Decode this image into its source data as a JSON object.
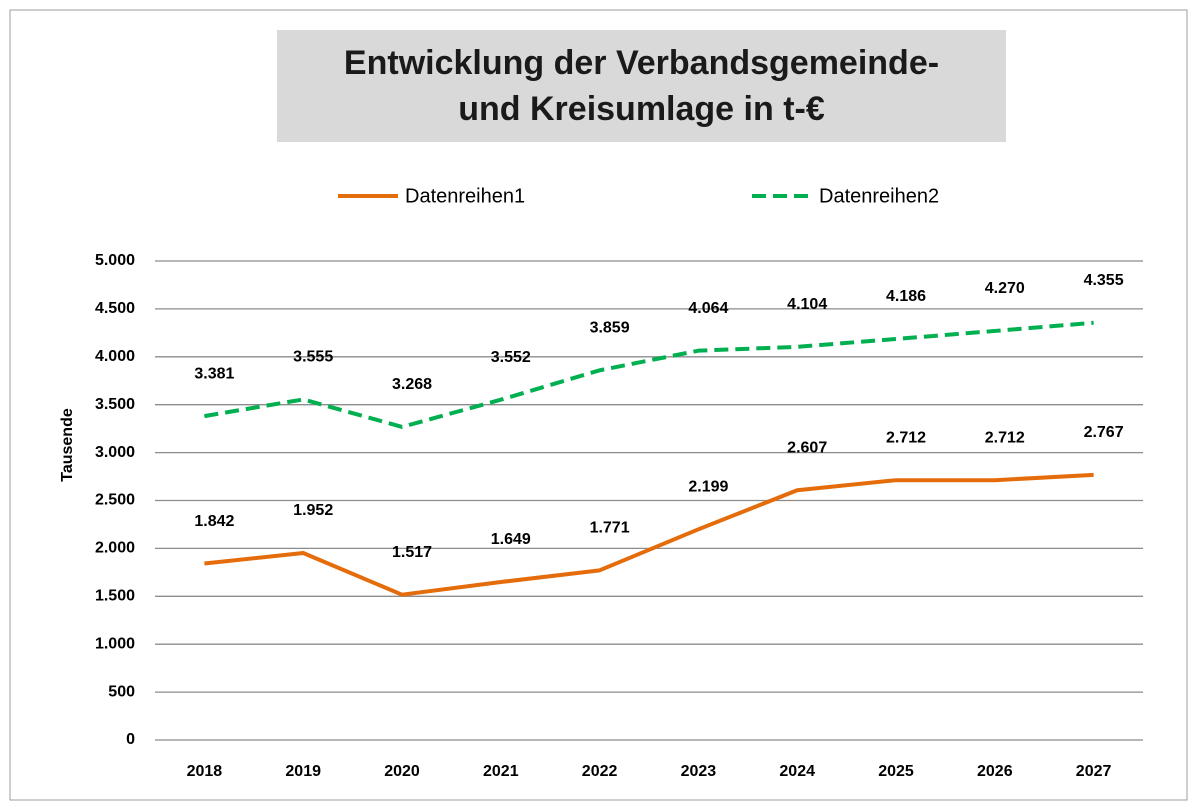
{
  "chart_data": {
    "type": "line",
    "title": "Entwicklung der Verbandsgemeinde- und Kreisumlage in t-€",
    "y_label": "Tausende",
    "categories": [
      "2018",
      "2019",
      "2020",
      "2021",
      "2022",
      "2023",
      "2024",
      "2025",
      "2026",
      "2027"
    ],
    "series": [
      {
        "name": "Datenreihen1",
        "color": "#e46c0a",
        "dash": false,
        "values": [
          1842,
          1952,
          1517,
          1649,
          1771,
          2199,
          2607,
          2712,
          2712,
          2767
        ],
        "value_labels": [
          "1.842",
          "1.952",
          "1.517",
          "1.649",
          "1.771",
          "2.199",
          "2.607",
          "2.712",
          "2.712",
          "2.767"
        ]
      },
      {
        "name": "Datenreihen2",
        "color": "#00b050",
        "dash": true,
        "values": [
          3381,
          3555,
          3268,
          3552,
          3859,
          4064,
          4104,
          4186,
          4270,
          4355
        ],
        "value_labels": [
          "3.381",
          "3.555",
          "3.268",
          "3.552",
          "3.859",
          "4.064",
          "4.104",
          "4.186",
          "4.270",
          "4.355"
        ]
      }
    ],
    "ylim": [
      0,
      5000
    ],
    "yticks": [
      0,
      500,
      {
        "value": 1000,
        "label": "1.000"
      },
      {
        "value": 1500,
        "label": "1.500"
      },
      {
        "value": 2000,
        "label": "2.000"
      },
      {
        "value": 2500,
        "label": "2.500"
      },
      {
        "value": 3000,
        "label": "3.000"
      },
      {
        "value": 3500,
        "label": "3.500"
      },
      {
        "value": 4000,
        "label": "4.000"
      },
      {
        "value": 4500,
        "label": "4.500"
      },
      {
        "value": 5000,
        "label": "5.000"
      }
    ],
    "grid": true,
    "legend": "top"
  }
}
